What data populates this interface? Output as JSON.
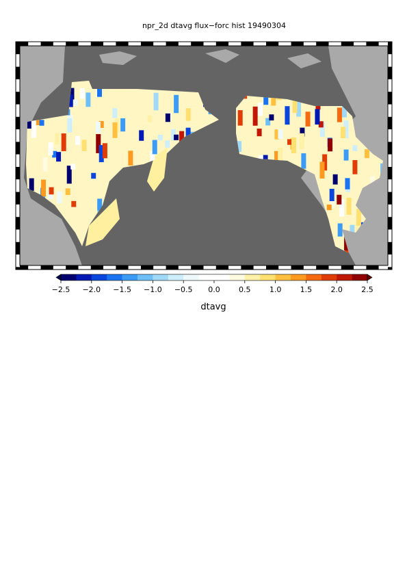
{
  "chart_data": {
    "type": "map",
    "title": "npr_2d dtavg flux−forc hist 19490304",
    "colorbar": {
      "label": "dtavg",
      "lim": [
        -2.5,
        2.5
      ],
      "ticks": [
        {
          "value": -2.5,
          "label": "−2.5"
        },
        {
          "value": -2.0,
          "label": "−2.0"
        },
        {
          "value": -1.5,
          "label": "−1.5"
        },
        {
          "value": -1.0,
          "label": "−1.0"
        },
        {
          "value": -0.5,
          "label": "−0.5"
        },
        {
          "value": 0,
          "label": "0.0"
        },
        0.5,
        {
          "value": 1,
          "label": "1.0"
        },
        1.5,
        {
          "value": 2,
          "label": "2.0"
        },
        2.5
      ],
      "colors": [
        "#00006e",
        "#0019b4",
        "#0a46dc",
        "#1a73f0",
        "#3c9bf5",
        "#6ebef7",
        "#a0d8f8",
        "#cdeefa",
        "#eef9fc",
        "#ffffff",
        "#ffffff",
        "#fffbe0",
        "#fff2a8",
        "#ffe070",
        "#ffc040",
        "#ff9a20",
        "#f56a10",
        "#e03c08",
        "#c01804",
        "#900000"
      ],
      "under_color": "#00004a",
      "over_color": "#600000"
    }
  }
}
